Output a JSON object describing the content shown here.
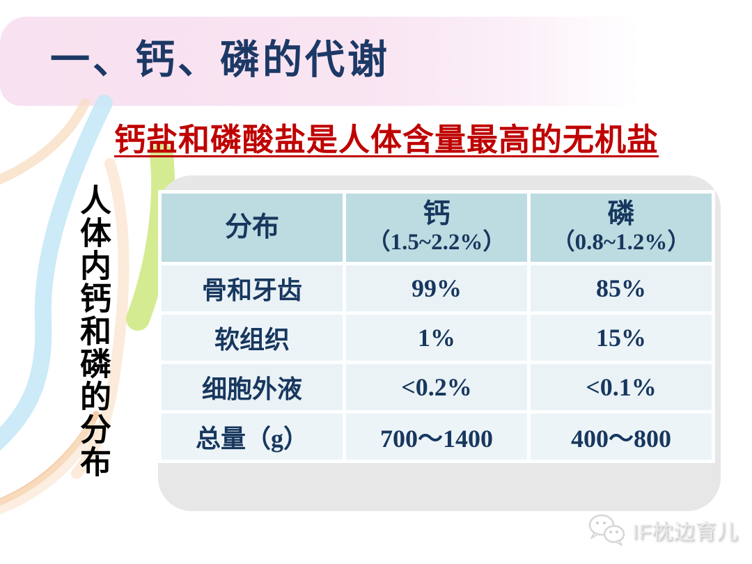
{
  "slide": {
    "title": "一、钙、磷的代谢",
    "subtitle": "钙盐和磷酸盐是人体含量最高的无机盐",
    "side_label": "人体内钙和磷的分布",
    "watermark": {
      "text": "IF枕边育儿",
      "icon": "wechat-icon"
    }
  },
  "table": {
    "headers": [
      {
        "main": "分布",
        "sub": ""
      },
      {
        "main": "钙",
        "sub": "（1.5~2.2%）"
      },
      {
        "main": "磷",
        "sub": "（0.8~1.2%）"
      }
    ],
    "rows": [
      [
        "骨和牙齿",
        "99%",
        "85%"
      ],
      [
        "软组织",
        "1%",
        "15%"
      ],
      [
        "细胞外液",
        "<0.2%",
        "<0.1%"
      ],
      [
        "总量（g）",
        "700～1400",
        "400～800"
      ]
    ]
  },
  "chart_data": {
    "type": "table",
    "title": "人体内钙和磷的分布",
    "columns": [
      "分布",
      "钙（1.5~2.2%）",
      "磷（0.8~1.2%）"
    ],
    "rows": [
      [
        "骨和牙齿",
        "99%",
        "85%"
      ],
      [
        "软组织",
        "1%",
        "15%"
      ],
      [
        "细胞外液",
        "<0.2%",
        "<0.1%"
      ],
      [
        "总量（g）",
        "700～1400",
        "400～800"
      ]
    ]
  },
  "colors": {
    "title_navy": "#1c3966",
    "subtitle_red": "#bf0000",
    "banner_pink": "#f8e1f0",
    "table_header_cyan": "#bcdce1",
    "table_row_blue": "#eaf2f6",
    "table_text_navy": "#17375e",
    "panel_gray": "#e8e7e7",
    "watermark_gray": "#d6d6d6"
  }
}
